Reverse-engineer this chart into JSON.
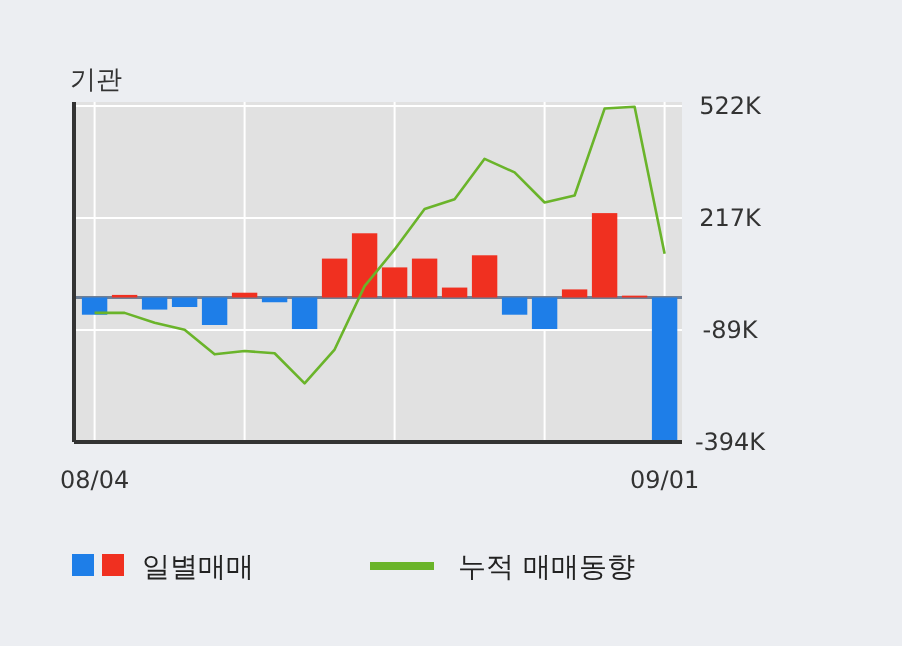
{
  "chart_data": {
    "type": "bar",
    "title": "기관",
    "categories": [
      "08/04",
      null,
      null,
      null,
      null,
      null,
      null,
      null,
      null,
      null,
      null,
      null,
      null,
      null,
      null,
      null,
      null,
      null,
      null,
      "09/01"
    ],
    "series": [
      {
        "name": "일별매매",
        "colors": [
          "#1e7ee8",
          "#f03020",
          "#1e7ee8",
          "#1e7ee8",
          "#1e7ee8",
          "#f03020",
          "#1e7ee8",
          "#1e7ee8",
          "#f03020",
          "#f03020",
          "#f03020",
          "#f03020",
          "#f03020",
          "#f03020",
          "#1e7ee8",
          "#1e7ee8",
          "#f03020",
          "#f03020",
          "#f03020",
          "#1e7ee8"
        ],
        "values": [
          -47000,
          7000,
          -33000,
          -26000,
          -75000,
          13000,
          -13000,
          -86000,
          106000,
          175000,
          82000,
          106000,
          27000,
          115000,
          -47000,
          -86000,
          22000,
          230000,
          5000,
          -390000
        ]
      },
      {
        "name": "누적 매매동향",
        "type": "line",
        "color": "#6ab42a",
        "values": [
          -42000,
          -42000,
          -69000,
          -88000,
          -155000,
          -146000,
          -152000,
          -234000,
          -142000,
          31000,
          131000,
          241000,
          268000,
          378000,
          341000,
          259000,
          278000,
          515000,
          520000,
          119000
        ]
      }
    ],
    "ylim": [
      -394000,
      522000
    ],
    "yticks": [
      {
        "value": 522000,
        "label": "522K"
      },
      {
        "value": 217000,
        "label": "217K"
      },
      {
        "value": -89000,
        "label": "-89K"
      },
      {
        "value": -394000,
        "label": "-394K"
      }
    ],
    "grid": true,
    "legend": "bottom"
  }
}
